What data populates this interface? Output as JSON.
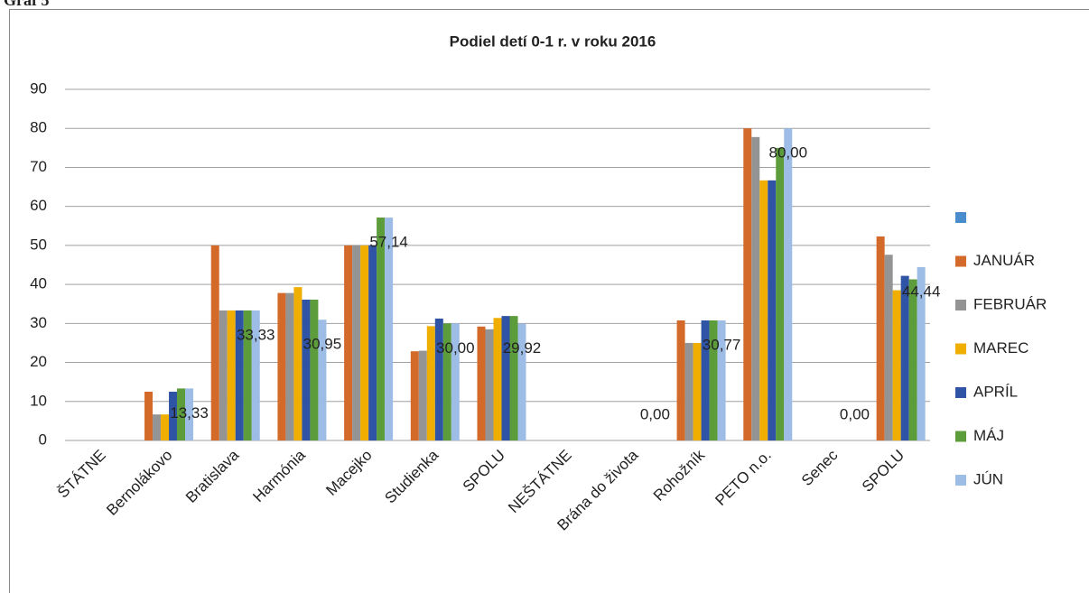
{
  "header": "Graf 5",
  "chart_data": {
    "type": "bar",
    "title": "Podiel detí 0-1 r. v roku 2016",
    "categories": [
      "ŠTÁTNE",
      "Bernolákovo",
      "Bratislava",
      "Harmónia",
      "Macejko",
      "Studienka",
      "SPOLU",
      "NEŠTÁTNE",
      "Brána do života",
      "Rohožník",
      "PETO n.o.",
      "Senec",
      "SPOLU"
    ],
    "series": [
      {
        "name": null,
        "color": "#4a8ccc",
        "values": [
          null,
          null,
          null,
          null,
          null,
          null,
          null,
          null,
          null,
          null,
          null,
          null,
          null
        ]
      },
      {
        "name": "JANUÁR",
        "color": "#d36a2a",
        "values": [
          null,
          12.5,
          50,
          37.8,
          50,
          22.86,
          29.2,
          null,
          0,
          30.77,
          80,
          0,
          52.3
        ]
      },
      {
        "name": "FEBRUÁR",
        "color": "#949494",
        "values": [
          null,
          6.67,
          33.33,
          37.8,
          50,
          23,
          28.5,
          null,
          0,
          25,
          77.78,
          0,
          47.6
        ]
      },
      {
        "name": "MAREC",
        "color": "#f0ae00",
        "values": [
          null,
          6.67,
          33.33,
          39.3,
          50,
          29.3,
          31.4,
          null,
          0,
          25,
          66.67,
          0,
          38.5
        ]
      },
      {
        "name": "APRÍL",
        "color": "#2f54a6",
        "values": [
          null,
          12.5,
          33.33,
          36.1,
          50,
          31.25,
          31.9,
          null,
          0,
          30.77,
          66.67,
          0,
          42.2
        ]
      },
      {
        "name": "MÁJ",
        "color": "#5c9c3a",
        "values": [
          null,
          13.33,
          33.33,
          36.1,
          57.14,
          30,
          31.9,
          null,
          0,
          30.77,
          75,
          0,
          41.3
        ]
      },
      {
        "name": "JÚN",
        "color": "#9dbde6",
        "values": [
          null,
          13.33,
          33.33,
          30.95,
          57.14,
          30,
          29.92,
          null,
          0,
          30.77,
          80,
          0,
          44.44
        ],
        "value_labels": [
          null,
          "13,33",
          "33,33",
          "30,95",
          "57,14",
          "30,00",
          "29,92",
          null,
          "0,00",
          "30,77",
          "80,00",
          "0,00",
          "44,44"
        ]
      }
    ],
    "ylim": [
      0,
      90
    ],
    "yticks": [
      0,
      10,
      20,
      30,
      40,
      50,
      60,
      70,
      80,
      90
    ],
    "grid": true,
    "legend": "right"
  }
}
